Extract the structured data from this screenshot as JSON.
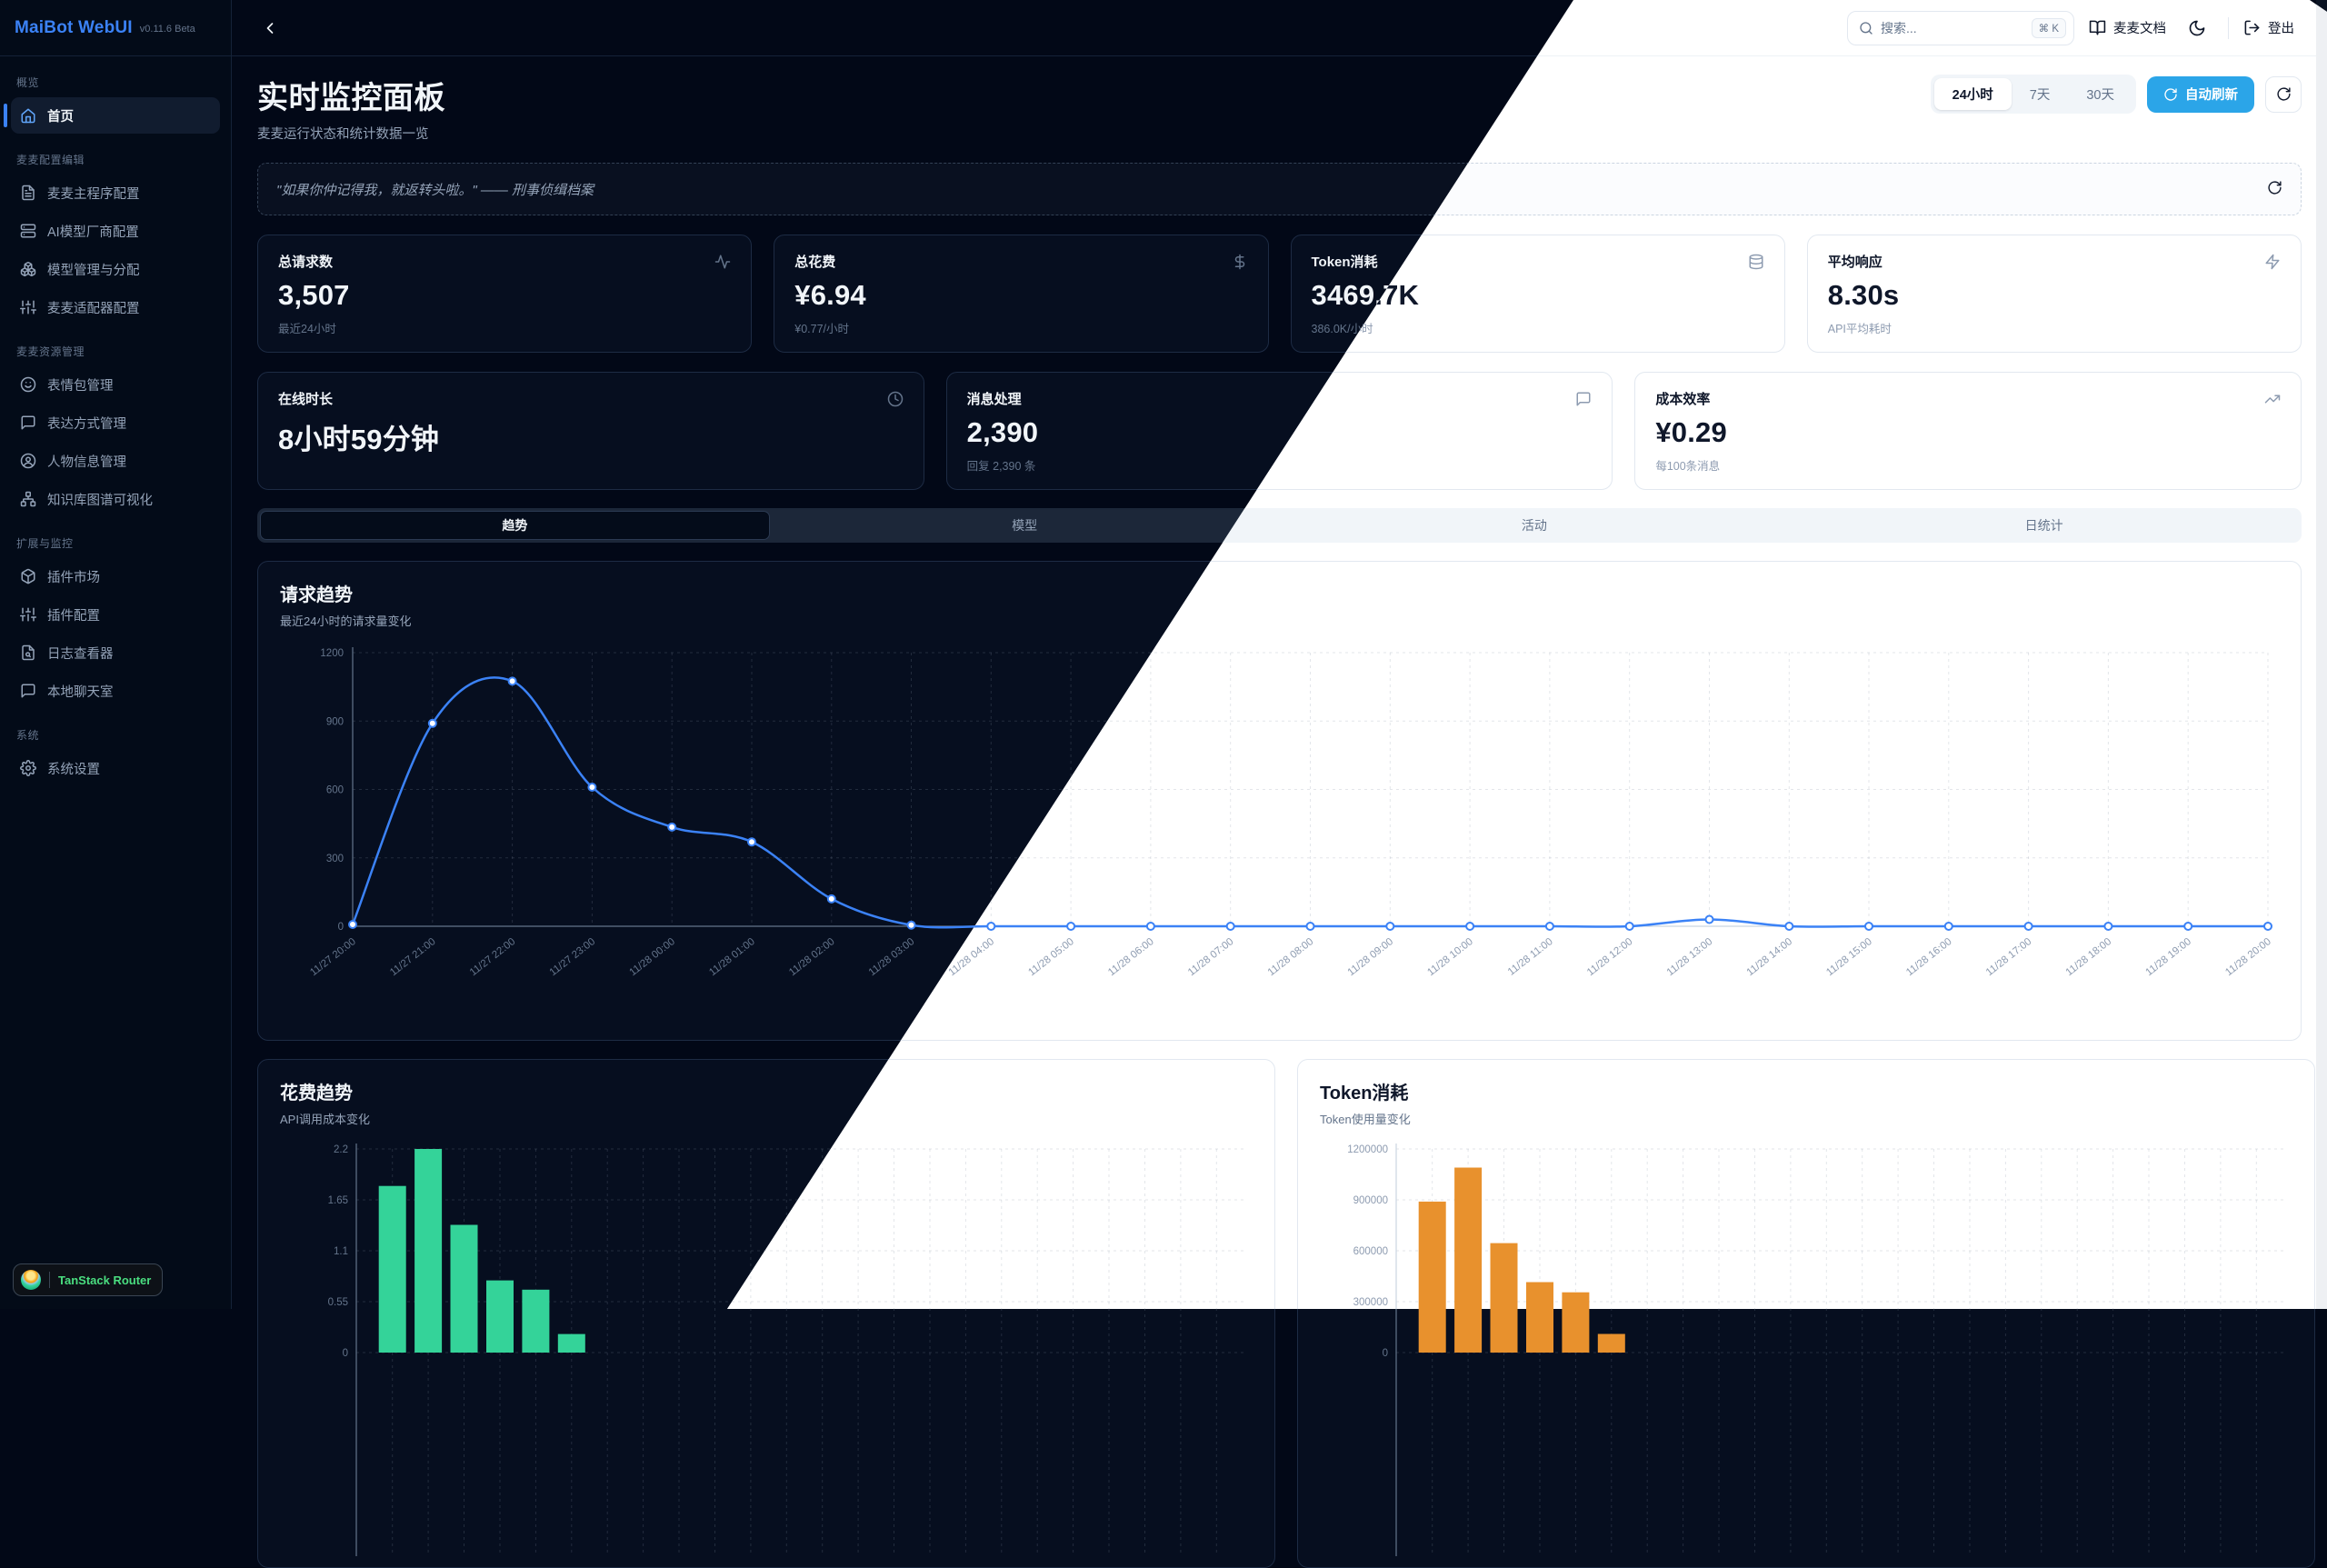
{
  "app": {
    "brand": "MaiBot WebUI",
    "version": "v0.11.6 Beta"
  },
  "header": {
    "search_placeholder": "搜索...",
    "search_kbd": "⌘ K",
    "docs_label": "麦麦文档",
    "logout_label": "登出",
    "theme_icon": "moon-icon",
    "collapse_icon": "chevron-left-icon"
  },
  "sidebar": {
    "sections": [
      {
        "label": "概览",
        "items": [
          {
            "id": "home",
            "label": "首页",
            "icon": "home-icon",
            "active": true
          }
        ]
      },
      {
        "label": "麦麦配置编辑",
        "items": [
          {
            "id": "main-config",
            "label": "麦麦主程序配置",
            "icon": "file-text-icon"
          },
          {
            "id": "ai-provider-config",
            "label": "AI模型厂商配置",
            "icon": "server-icon"
          },
          {
            "id": "model-management",
            "label": "模型管理与分配",
            "icon": "boxes-icon"
          },
          {
            "id": "adapter-config",
            "label": "麦麦适配器配置",
            "icon": "sliders-icon"
          }
        ]
      },
      {
        "label": "麦麦资源管理",
        "items": [
          {
            "id": "emoji-management",
            "label": "表情包管理",
            "icon": "smile-icon"
          },
          {
            "id": "expression-management",
            "label": "表达方式管理",
            "icon": "message-square-icon"
          },
          {
            "id": "persona-management",
            "label": "人物信息管理",
            "icon": "user-round-icon"
          },
          {
            "id": "knowledge-graph",
            "label": "知识库图谱可视化",
            "icon": "network-icon"
          }
        ]
      },
      {
        "label": "扩展与监控",
        "items": [
          {
            "id": "plugin-market",
            "label": "插件市场",
            "icon": "package-icon"
          },
          {
            "id": "plugin-config",
            "label": "插件配置",
            "icon": "sliders-icon"
          },
          {
            "id": "log-viewer",
            "label": "日志查看器",
            "icon": "file-search-icon"
          },
          {
            "id": "local-chat",
            "label": "本地聊天室",
            "icon": "message-square-icon"
          }
        ]
      },
      {
        "label": "系统",
        "items": [
          {
            "id": "system-settings",
            "label": "系统设置",
            "icon": "settings-icon"
          }
        ]
      }
    ]
  },
  "page": {
    "title": "实时监控面板",
    "subtitle": "麦麦运行状态和统计数据一览",
    "time_ranges": [
      {
        "id": "24h",
        "label": "24小时",
        "active": true
      },
      {
        "id": "7d",
        "label": "7天",
        "active": false
      },
      {
        "id": "30d",
        "label": "30天",
        "active": false
      }
    ],
    "auto_refresh_label": "自动刷新",
    "quote": "\"如果你仲记得我，就返转头啦。\" —— 刑事侦缉档案"
  },
  "stat_cards_row1": [
    {
      "id": "total-requests",
      "label": "总请求数",
      "value": "3,507",
      "sub": "最近24小时",
      "icon": "activity-icon"
    },
    {
      "id": "total-cost",
      "label": "总花费",
      "value": "¥6.94",
      "sub": "¥0.77/小时",
      "icon": "dollar-icon"
    },
    {
      "id": "token-usage",
      "label": "Token消耗",
      "value": "3469.7K",
      "sub": "386.0K/小时",
      "icon": "database-icon"
    },
    {
      "id": "avg-response",
      "label": "平均响应",
      "value": "8.30s",
      "sub": "API平均耗时",
      "icon": "zap-icon"
    }
  ],
  "stat_cards_row2": [
    {
      "id": "online-duration",
      "label": "在线时长",
      "value": "8小时59分钟",
      "sub": "",
      "icon": "clock-icon"
    },
    {
      "id": "message-processing",
      "label": "消息处理",
      "value": "2,390",
      "sub": "回复 2,390 条",
      "icon": "message-square-icon"
    },
    {
      "id": "cost-efficiency",
      "label": "成本效率",
      "value": "¥0.29",
      "sub": "每100条消息",
      "icon": "trending-up-icon"
    }
  ],
  "tabs": [
    {
      "id": "trend",
      "label": "趋势",
      "active": true
    },
    {
      "id": "models",
      "label": "模型",
      "active": false
    },
    {
      "id": "activity",
      "label": "活动",
      "active": false
    },
    {
      "id": "daily-stats",
      "label": "日统计",
      "active": false
    }
  ],
  "chart_data": [
    {
      "type": "line",
      "title": "请求趋势",
      "subtitle": "最近24小时的请求量变化",
      "x": [
        "11/27 20:00",
        "11/27 21:00",
        "11/27 22:00",
        "11/27 23:00",
        "11/28 00:00",
        "11/28 01:00",
        "11/28 02:00",
        "11/28 03:00",
        "11/28 04:00",
        "11/28 05:00",
        "11/28 06:00",
        "11/28 07:00",
        "11/28 08:00",
        "11/28 09:00",
        "11/28 10:00",
        "11/28 11:00",
        "11/28 12:00",
        "11/28 13:00",
        "11/28 14:00",
        "11/28 15:00",
        "11/28 16:00",
        "11/28 17:00",
        "11/28 18:00",
        "11/28 19:00",
        "11/28 20:00"
      ],
      "values": [
        8,
        890,
        1075,
        610,
        435,
        370,
        120,
        5,
        0,
        0,
        0,
        0,
        0,
        0,
        0,
        0,
        0,
        30,
        0,
        0,
        0,
        0,
        0,
        0,
        0
      ],
      "ylim": [
        0,
        1200
      ],
      "yticks": [
        0,
        300,
        600,
        900,
        1200
      ],
      "grid": "dashed",
      "color": "#3b82f6"
    },
    {
      "type": "bar",
      "title": "花费趋势",
      "subtitle": "API调用成本变化",
      "values": [
        1.8,
        2.2,
        1.38,
        0.78,
        0.68,
        0.2,
        0,
        0,
        0,
        0,
        0,
        0,
        0,
        0,
        0,
        0,
        0,
        0,
        0,
        0,
        0,
        0,
        0,
        0
      ],
      "ylim": [
        0,
        2.2
      ],
      "yticks": [
        0,
        0.55,
        1.1,
        1.65,
        2.2
      ],
      "grid": "dashed",
      "color": "#34d399"
    },
    {
      "type": "bar",
      "title": "Token消耗",
      "subtitle": "Token使用量变化",
      "values": [
        890000,
        1090000,
        645000,
        415000,
        355000,
        110000,
        0,
        0,
        0,
        0,
        0,
        0,
        0,
        0,
        0,
        0,
        0,
        0,
        0,
        0,
        0,
        0,
        0,
        0
      ],
      "ylim": [
        0,
        1200000
      ],
      "yticks": [
        0,
        300000,
        600000,
        900000,
        1200000
      ],
      "grid": "dashed",
      "color": "#e8912d"
    }
  ],
  "dev_badge": {
    "label": "TanStack Router"
  },
  "colors": {
    "accent": "#3b82f6",
    "auto_refresh_button": "#2ba5e8",
    "line": "#3b82f6",
    "cost_bars": "#34d399",
    "token_bars": "#e8912d"
  }
}
